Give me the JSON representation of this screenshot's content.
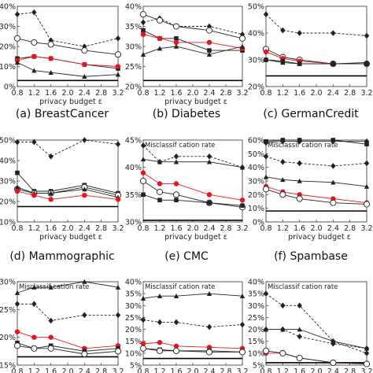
{
  "figure": {
    "markers": {
      "diamond": "filled-diamond",
      "circle": "open-circle",
      "square": "filled-square",
      "triangle": "filled-triangle",
      "red": "filled-circle"
    },
    "colors": {
      "black": "#222222",
      "red": "#e8141c",
      "baseline": "#000000"
    }
  },
  "chart_data": [
    {
      "type": "line",
      "caption": "(a) BreastCancer",
      "title": "",
      "xlabel": "privacy budget ε",
      "ylabel": "",
      "x": [
        0.8,
        1.2,
        1.6,
        2.4,
        3.2
      ],
      "xticks": [
        "0.8",
        "1.2",
        "1.6",
        "2.0",
        "2.4",
        "2.8",
        "3.2"
      ],
      "ylim": [
        0,
        40
      ],
      "yticks": [
        "0%",
        "10%",
        "20%",
        "30%",
        "40%"
      ],
      "baseline": 3,
      "series": [
        {
          "style": "dashed",
          "marker": "diamond",
          "color": "black",
          "values": [
            36,
            37,
            23,
            20,
            24
          ]
        },
        {
          "style": "solid",
          "marker": "circle",
          "color": "black",
          "values": [
            24,
            22,
            21,
            18,
            16
          ]
        },
        {
          "style": "solid",
          "marker": "square",
          "color": "black",
          "values": [
            14,
            15,
            14,
            11,
            9
          ]
        },
        {
          "style": "solid",
          "marker": "red",
          "color": "red",
          "values": [
            13,
            15,
            14,
            11,
            10
          ]
        },
        {
          "style": "solid",
          "marker": "triangle",
          "color": "black",
          "values": [
            12,
            8,
            7,
            5,
            6
          ]
        }
      ]
    },
    {
      "type": "line",
      "caption": "(b) Diabetes",
      "title": "",
      "xlabel": "privacy budget ε",
      "ylabel": "",
      "x": [
        0.8,
        1.2,
        1.6,
        2.4,
        3.2
      ],
      "xticks": [
        "0.8",
        "1.2",
        "1.6",
        "2.0",
        "2.4",
        "2.8",
        "3.2"
      ],
      "ylim": [
        20,
        40
      ],
      "yticks": [
        "20%",
        "25%",
        "30%",
        "35%",
        "40%"
      ],
      "baseline": 21.5,
      "series": [
        {
          "style": "dashed",
          "marker": "diamond",
          "color": "black",
          "values": [
            36,
            37,
            35,
            35,
            33
          ]
        },
        {
          "style": "solid",
          "marker": "circle",
          "color": "black",
          "values": [
            38,
            36.5,
            35,
            34,
            32
          ]
        },
        {
          "style": "solid",
          "marker": "square",
          "color": "black",
          "values": [
            34,
            32,
            32,
            29,
            29
          ]
        },
        {
          "style": "solid",
          "marker": "red",
          "color": "red",
          "values": [
            33,
            32,
            31,
            31,
            29.5
          ]
        },
        {
          "style": "solid",
          "marker": "triangle",
          "color": "black",
          "values": [
            28,
            29.5,
            30,
            28,
            30
          ]
        }
      ]
    },
    {
      "type": "line",
      "caption": "(c) GermanCredit",
      "title": "",
      "xlabel": "",
      "ylabel": "",
      "x": [
        0.8,
        1.2,
        1.6,
        2.4,
        3.2
      ],
      "xticks": [
        "0.8",
        "1.2",
        "1.6",
        "2.0",
        "2.4",
        "2.8",
        "3.2"
      ],
      "ylim": [
        20,
        50
      ],
      "yticks": [
        "20%",
        "30%",
        "40%",
        "50%"
      ],
      "baseline": 24,
      "series": [
        {
          "style": "dashed",
          "marker": "diamond",
          "color": "black",
          "values": [
            47,
            41,
            40,
            40,
            39
          ]
        },
        {
          "style": "solid",
          "marker": "circle",
          "color": "black",
          "values": [
            34,
            31,
            30,
            28.5,
            28.5
          ]
        },
        {
          "style": "solid",
          "marker": "red",
          "color": "red",
          "values": [
            33,
            30.5,
            29.5,
            28.5,
            28.5
          ]
        },
        {
          "style": "solid",
          "marker": "square",
          "color": "black",
          "values": [
            30,
            29.5,
            28.5,
            28.5,
            28.5
          ]
        },
        {
          "style": "solid",
          "marker": "triangle",
          "color": "black",
          "values": [
            30,
            29,
            28.5,
            28.5,
            29
          ]
        }
      ]
    },
    {
      "type": "line",
      "caption": "(d) Mammographic",
      "title": "",
      "xlabel": "privacy budget ε",
      "ylabel": "",
      "x": [
        0.8,
        1.2,
        1.6,
        2.4,
        3.2
      ],
      "xticks": [
        "0.8",
        "1.2",
        "1.6",
        "2.0",
        "2.4",
        "2.8",
        "3.2"
      ],
      "ylim": [
        10,
        50
      ],
      "yticks": [
        "10%",
        "20%",
        "30%",
        "40%",
        "50%"
      ],
      "baseline": 17.5,
      "series": [
        {
          "style": "dashed",
          "marker": "diamond",
          "color": "black",
          "values": [
            49,
            49,
            42,
            50,
            48
          ]
        },
        {
          "style": "solid",
          "marker": "square",
          "color": "black",
          "values": [
            34,
            25,
            25,
            28,
            24
          ]
        },
        {
          "style": "solid",
          "marker": "circle",
          "color": "black",
          "values": [
            26,
            24,
            24,
            27,
            23
          ]
        },
        {
          "style": "solid",
          "marker": "triangle",
          "color": "black",
          "values": [
            27,
            24,
            24,
            26,
            22
          ]
        },
        {
          "style": "solid",
          "marker": "red",
          "color": "red",
          "values": [
            25,
            23,
            21,
            23,
            21
          ]
        }
      ]
    },
    {
      "type": "line",
      "caption": "(e) CMC",
      "title": "Misclassif cation rate",
      "xlabel": "privacy budget ε",
      "ylabel": "",
      "x": [
        0.8,
        1.2,
        1.6,
        2.4,
        3.2
      ],
      "xticks": [
        "0.8",
        "1.2",
        "1.6",
        "2.0",
        "2.4",
        "2.8",
        "3.2"
      ],
      "ylim": [
        30,
        45
      ],
      "yticks": [
        "30%",
        "35%",
        "40%",
        "45%"
      ],
      "baseline": 30.3,
      "series": [
        {
          "style": "dashed",
          "marker": "diamond",
          "color": "black",
          "values": [
            44,
            41,
            42,
            42,
            40
          ]
        },
        {
          "style": "solid",
          "marker": "triangle",
          "color": "black",
          "values": [
            41.5,
            41,
            41,
            41,
            40
          ]
        },
        {
          "style": "solid",
          "marker": "red",
          "color": "red",
          "values": [
            39,
            37,
            37,
            35,
            34
          ]
        },
        {
          "style": "solid",
          "marker": "circle",
          "color": "black",
          "values": [
            37.5,
            35.5,
            35,
            33.5,
            32.7
          ]
        },
        {
          "style": "solid",
          "marker": "square",
          "color": "black",
          "values": [
            35,
            34,
            34,
            33.5,
            33
          ]
        }
      ]
    },
    {
      "type": "line",
      "caption": "(f) Spambase",
      "title": "Misclassif cation rate",
      "xlabel": "privacy budget ε",
      "ylabel": "",
      "x": [
        0.8,
        1.2,
        1.6,
        2.4,
        3.2
      ],
      "xticks": [
        "0.8",
        "1.2",
        "1.6",
        "2.0",
        "2.4",
        "2.8",
        "3.2"
      ],
      "ylim": [
        0,
        60
      ],
      "yticks": [
        "0%",
        "10%",
        "20%",
        "30%",
        "40%",
        "50%",
        "60%"
      ],
      "baseline": 8,
      "series": [
        {
          "style": "solid",
          "marker": "square",
          "color": "black",
          "values": [
            59,
            60,
            60,
            60,
            57
          ]
        },
        {
          "style": "solid",
          "marker": "diamond",
          "color": "black",
          "values": [
            58,
            59,
            59,
            59,
            59
          ]
        },
        {
          "style": "dashed",
          "marker": "diamond",
          "color": "black",
          "values": [
            48,
            44,
            43,
            41,
            43
          ]
        },
        {
          "style": "solid",
          "marker": "triangle",
          "color": "black",
          "values": [
            33,
            31,
            30,
            29,
            26
          ]
        },
        {
          "style": "solid",
          "marker": "red",
          "color": "red",
          "values": [
            26,
            22,
            20,
            17,
            14
          ]
        },
        {
          "style": "solid",
          "marker": "circle",
          "color": "black",
          "values": [
            24,
            20,
            17,
            14,
            13
          ]
        }
      ]
    },
    {
      "type": "line",
      "caption": "",
      "title": "Misclassif cation rate",
      "xlabel": "",
      "ylabel": "",
      "x": [
        0.8,
        1.2,
        1.6,
        2.4,
        3.2
      ],
      "xticks": [
        "0.8",
        "1.2",
        "1.6",
        "2.0",
        "2.4",
        "2.8",
        "3.2"
      ],
      "ylim": [
        15,
        30
      ],
      "yticks": [
        "15%",
        "20%",
        "25%",
        "30%"
      ],
      "baseline": 16.5,
      "series": [
        {
          "style": "solid",
          "marker": "triangle",
          "color": "black",
          "values": [
            28,
            29,
            29,
            30,
            29
          ]
        },
        {
          "style": "dashed",
          "marker": "diamond",
          "color": "black",
          "values": [
            26,
            26,
            23,
            24,
            24
          ]
        },
        {
          "style": "solid",
          "marker": "red",
          "color": "red",
          "values": [
            21,
            20,
            20,
            18,
            18.5
          ]
        },
        {
          "style": "solid",
          "marker": "square",
          "color": "black",
          "values": [
            19,
            18,
            18.5,
            17.5,
            18
          ]
        },
        {
          "style": "solid",
          "marker": "circle",
          "color": "black",
          "values": [
            18.5,
            18,
            18,
            17,
            17.5
          ]
        }
      ]
    },
    {
      "type": "line",
      "caption": "",
      "title": "Misclassif cation rate",
      "xlabel": "",
      "ylabel": "",
      "x": [
        0.8,
        1.2,
        1.6,
        2.4,
        3.2
      ],
      "xticks": [
        "0.8",
        "1.2",
        "1.6",
        "2.0",
        "2.4",
        "2.8",
        "3.2"
      ],
      "ylim": [
        5,
        40
      ],
      "yticks": [
        "5%",
        "10%",
        "15%",
        "20%",
        "25%",
        "30%",
        "35%",
        "40%"
      ],
      "baseline": 7.8,
      "series": [
        {
          "style": "solid",
          "marker": "triangle",
          "color": "black",
          "values": [
            33,
            34,
            34,
            35,
            34
          ]
        },
        {
          "style": "dashed",
          "marker": "diamond",
          "color": "black",
          "values": [
            24,
            23,
            23,
            21,
            22
          ]
        },
        {
          "style": "solid",
          "marker": "red",
          "color": "red",
          "values": [
            14,
            14.5,
            13,
            12.5,
            12
          ]
        },
        {
          "style": "solid",
          "marker": "square",
          "color": "black",
          "values": [
            12,
            11.5,
            11,
            11,
            10.5
          ]
        },
        {
          "style": "solid",
          "marker": "circle",
          "color": "black",
          "values": [
            12,
            11,
            11,
            10.5,
            10.5
          ]
        }
      ]
    },
    {
      "type": "line",
      "caption": "",
      "title": "Misclassif cation rate",
      "xlabel": "",
      "ylabel": "",
      "x": [
        0.8,
        1.2,
        1.6,
        2.4,
        3.2
      ],
      "xticks": [
        "0.8",
        "1.2",
        "1.6",
        "2.0",
        "2.4",
        "2.8",
        "3.2"
      ],
      "ylim": [
        5,
        40
      ],
      "yticks": [
        "5%",
        "10%",
        "15%",
        "20%",
        "25%",
        "30%",
        "35%",
        "40%"
      ],
      "baseline": 6,
      "series": [
        {
          "style": "dashed",
          "marker": "diamond",
          "color": "black",
          "values": [
            35,
            30,
            30,
            15,
            10
          ]
        },
        {
          "style": "solid",
          "marker": "triangle",
          "color": "black",
          "values": [
            20,
            20,
            20,
            15,
            12
          ]
        },
        {
          "style": "dashed",
          "marker": "diamond",
          "color": "black",
          "values": [
            20,
            20,
            17,
            14,
            12
          ]
        },
        {
          "style": "solid",
          "marker": "red",
          "color": "red",
          "values": [
            10,
            10,
            8,
            6,
            5.5
          ]
        },
        {
          "style": "solid",
          "marker": "circle",
          "color": "black",
          "values": [
            11,
            10,
            8,
            6,
            5.5
          ]
        }
      ]
    }
  ]
}
